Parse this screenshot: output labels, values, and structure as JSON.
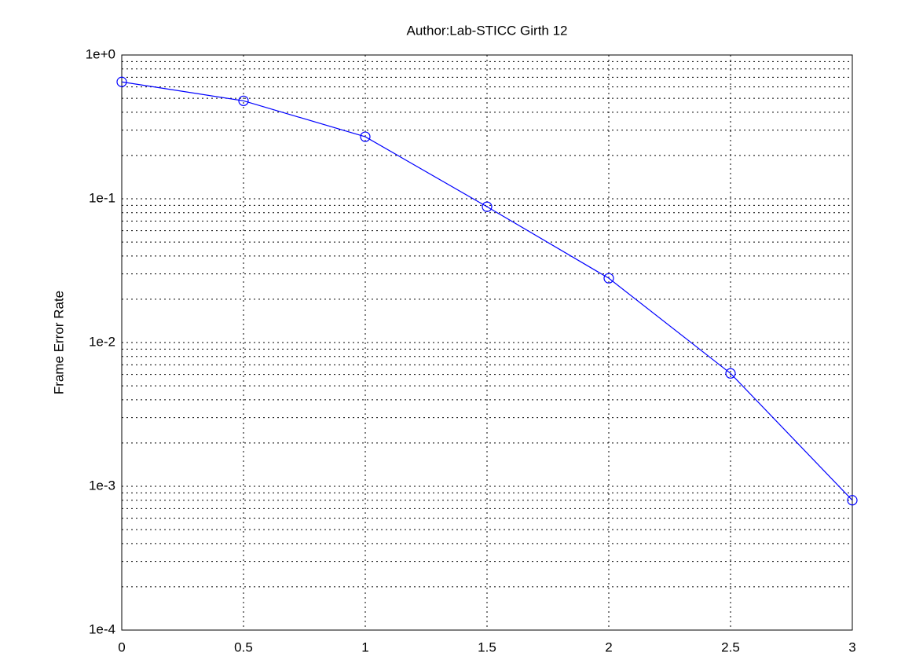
{
  "chart_data": {
    "type": "line",
    "title": "Author:Lab-STICC Girth 12",
    "y_label": "Frame Error Rate",
    "x": [
      0,
      0.5,
      1,
      1.5,
      2,
      2.5,
      3
    ],
    "values": [
      0.65,
      0.48,
      0.27,
      0.088,
      0.028,
      0.0061,
      0.0008
    ],
    "color": "#0000ff",
    "marker": "circle",
    "xlim": [
      0,
      3
    ],
    "xticks": [
      0,
      0.5,
      1,
      1.5,
      2,
      2.5,
      3
    ],
    "ylim": [
      0.0001,
      1
    ],
    "y_log": true,
    "yticks": [
      {
        "value": 0.0001,
        "label": "1e-4"
      },
      {
        "value": 0.001,
        "label": "1e-3"
      },
      {
        "value": 0.01,
        "label": "1e-2"
      },
      {
        "value": 0.1,
        "label": "1e-1"
      },
      {
        "value": 1,
        "label": "1e+0"
      }
    ],
    "yminorticks": [
      0.0002,
      0.0003,
      0.0004,
      0.0005,
      0.0006,
      0.0007,
      0.0008,
      0.0009,
      0.002,
      0.003,
      0.004,
      0.005,
      0.006,
      0.007,
      0.008,
      0.009,
      0.02,
      0.03,
      0.04,
      0.05,
      0.06,
      0.07,
      0.08,
      0.09,
      0.2,
      0.3,
      0.4,
      0.5,
      0.6,
      0.7,
      0.8,
      0.9
    ],
    "grid": true
  }
}
